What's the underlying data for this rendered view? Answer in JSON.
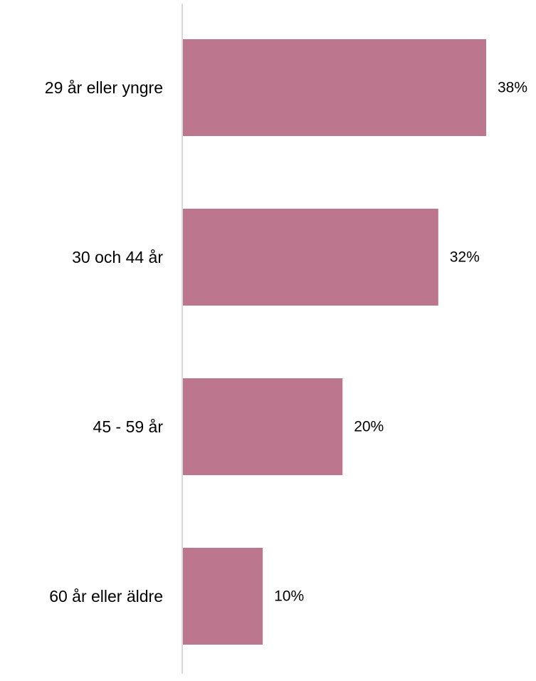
{
  "chart_data": {
    "type": "bar",
    "orientation": "horizontal",
    "categories": [
      "29 år eller yngre",
      "30 och 44 år",
      "45 - 59 år",
      "60 år eller äldre"
    ],
    "values": [
      38,
      32,
      20,
      10
    ],
    "value_labels": [
      "38%",
      "32%",
      "20%",
      "10%"
    ],
    "unit": "%",
    "xlim": [
      0,
      38
    ],
    "grid": false,
    "legend": "none",
    "bar_color": "#bc778e",
    "axis_color": "#d9d9d9"
  }
}
